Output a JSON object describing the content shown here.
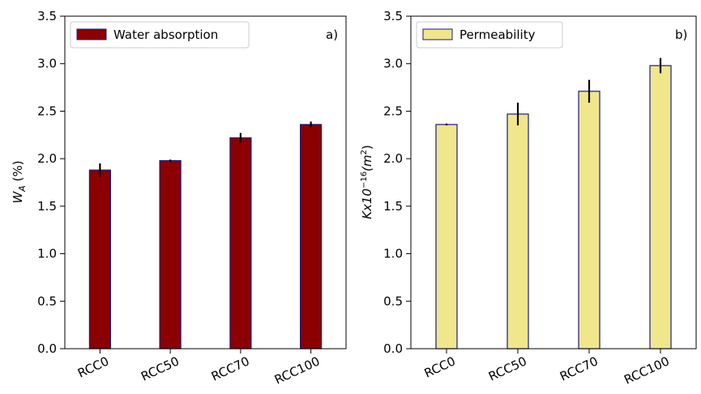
{
  "chart_data": [
    {
      "type": "bar",
      "panel_label": "a)",
      "categories": [
        "RCC0",
        "RCC50",
        "RCC70",
        "RCC100"
      ],
      "series": [
        {
          "name": "Water absorption",
          "values": [
            1.88,
            1.98,
            2.22,
            2.36
          ],
          "errors": [
            0.07,
            0.01,
            0.05,
            0.03
          ],
          "color": "#8b0000",
          "edge_color": "#1a1a80"
        }
      ],
      "ylabel": "W",
      "ylabel_subscript": "A",
      "ylabel_suffix": " (%)",
      "ylim": [
        0,
        3.5
      ],
      "yticks": [
        "0.0",
        "0.5",
        "1.0",
        "1.5",
        "2.0",
        "2.5",
        "3.0",
        "3.5"
      ],
      "grid": false,
      "legend": "top-left"
    },
    {
      "type": "bar",
      "panel_label": "b)",
      "categories": [
        "RCC0",
        "RCC50",
        "RCC70",
        "RCC100"
      ],
      "series": [
        {
          "name": "Permeability",
          "values": [
            2.36,
            2.47,
            2.71,
            2.98
          ],
          "errors": [
            0.01,
            0.12,
            0.12,
            0.08
          ],
          "color": "#f0e68c",
          "edge_color": "#1a1a80"
        }
      ],
      "ylabel": "Kx10",
      "ylabel_exponent": "−16",
      "ylabel_unit_open": "(m",
      "ylabel_unit_exponent": "2",
      "ylabel_unit_close": ")",
      "ylim": [
        0,
        3.5
      ],
      "yticks": [
        "0.0",
        "0.5",
        "1.0",
        "1.5",
        "2.0",
        "2.5",
        "3.0",
        "3.5"
      ],
      "grid": false,
      "legend": "top-left"
    }
  ]
}
